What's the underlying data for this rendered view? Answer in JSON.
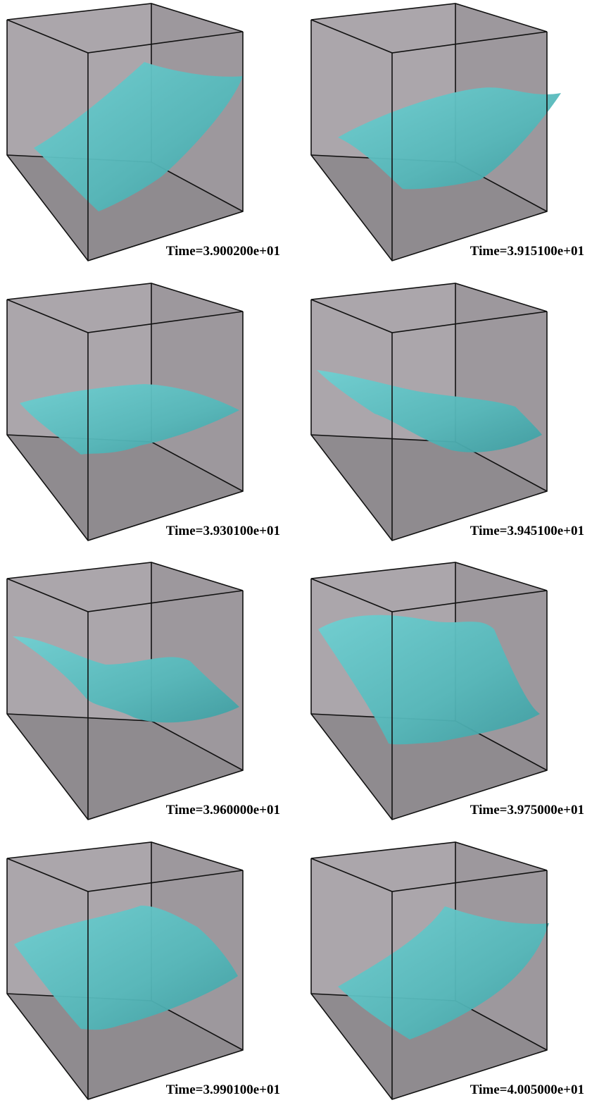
{
  "panels": [
    {
      "label": "Time=3.900200e+01"
    },
    {
      "label": "Time=3.915100e+01"
    },
    {
      "label": "Time=3.930100e+01"
    },
    {
      "label": "Time=3.945100e+01"
    },
    {
      "label": "Time=3.960000e+01"
    },
    {
      "label": "Time=3.975000e+01"
    },
    {
      "label": "Time=3.990100e+01"
    },
    {
      "label": "Time=4.005000e+01"
    }
  ]
}
